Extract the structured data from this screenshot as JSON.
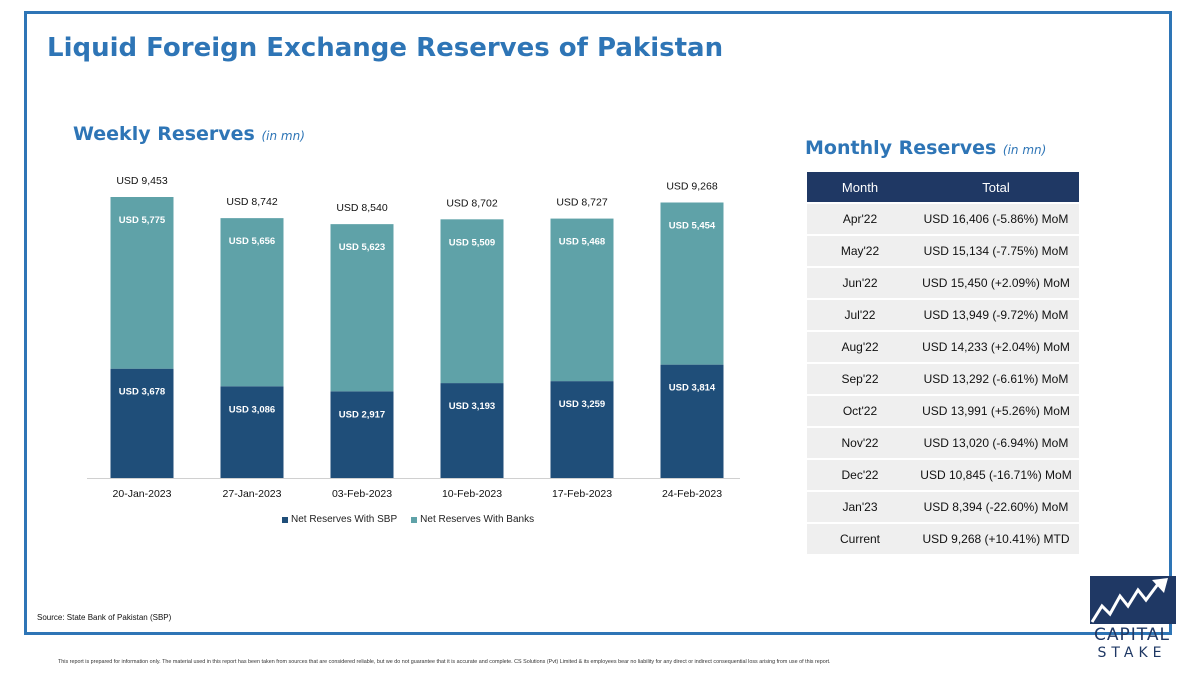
{
  "title": "Liquid Foreign Exchange Reserves of Pakistan",
  "weekly": {
    "heading": "Weekly Reserves",
    "unit": "(in mn)"
  },
  "monthly": {
    "heading": "Monthly Reserves",
    "unit": "(in mn)",
    "columns": [
      "Month",
      "Total"
    ],
    "rows": [
      [
        "Apr'22",
        "USD 16,406 (-5.86%) MoM"
      ],
      [
        "May'22",
        "USD 15,134 (-7.75%) MoM"
      ],
      [
        "Jun'22",
        "USD 15,450 (+2.09%) MoM"
      ],
      [
        "Jul'22",
        "USD 13,949 (-9.72%) MoM"
      ],
      [
        "Aug'22",
        "USD 14,233 (+2.04%) MoM"
      ],
      [
        "Sep'22",
        "USD 13,292 (-6.61%) MoM"
      ],
      [
        "Oct'22",
        "USD 13,991 (+5.26%) MoM"
      ],
      [
        "Nov'22",
        "USD 13,020 (-6.94%) MoM"
      ],
      [
        "Dec'22",
        "USD 10,845 (-16.71%) MoM"
      ],
      [
        "Jan'23",
        "USD 8,394 (-22.60%) MoM"
      ],
      [
        "Current",
        "USD 9,268 (+10.41%) MTD"
      ]
    ]
  },
  "chart_data": {
    "type": "bar",
    "stacked": true,
    "categories": [
      "20-Jan-2023",
      "27-Jan-2023",
      "03-Feb-2023",
      "10-Feb-2023",
      "17-Feb-2023",
      "24-Feb-2023"
    ],
    "series": [
      {
        "name": "Net Reserves With SBP",
        "values": [
          3678,
          3086,
          2917,
          3193,
          3259,
          3814
        ],
        "color": "#1f4e79"
      },
      {
        "name": "Net Reserves With Banks",
        "values": [
          5775,
          5656,
          5623,
          5509,
          5468,
          5454
        ],
        "color": "#5fa2a8"
      }
    ],
    "totals": [
      9453,
      8742,
      8540,
      8702,
      8727,
      9268
    ],
    "value_prefix": "USD ",
    "ylim": [
      0,
      9453
    ],
    "grid": false,
    "legend_position": "bottom"
  },
  "source": "Source: State Bank of Pakistan (SBP)",
  "disclaimer": "This report is prepared for information only. The material used in this report has been taken from sources that are considered reliable, but we do not guarantee that it is accurate and complete. CS Solutions (Pvt) Limited & its employees bear no liability for any direct or indirect consequential loss arising from use of this report.",
  "logo": {
    "line1": "CAPITAL",
    "line2": "STAKE"
  },
  "colors": {
    "accent": "#2e75b6",
    "header": "#1f3864"
  }
}
